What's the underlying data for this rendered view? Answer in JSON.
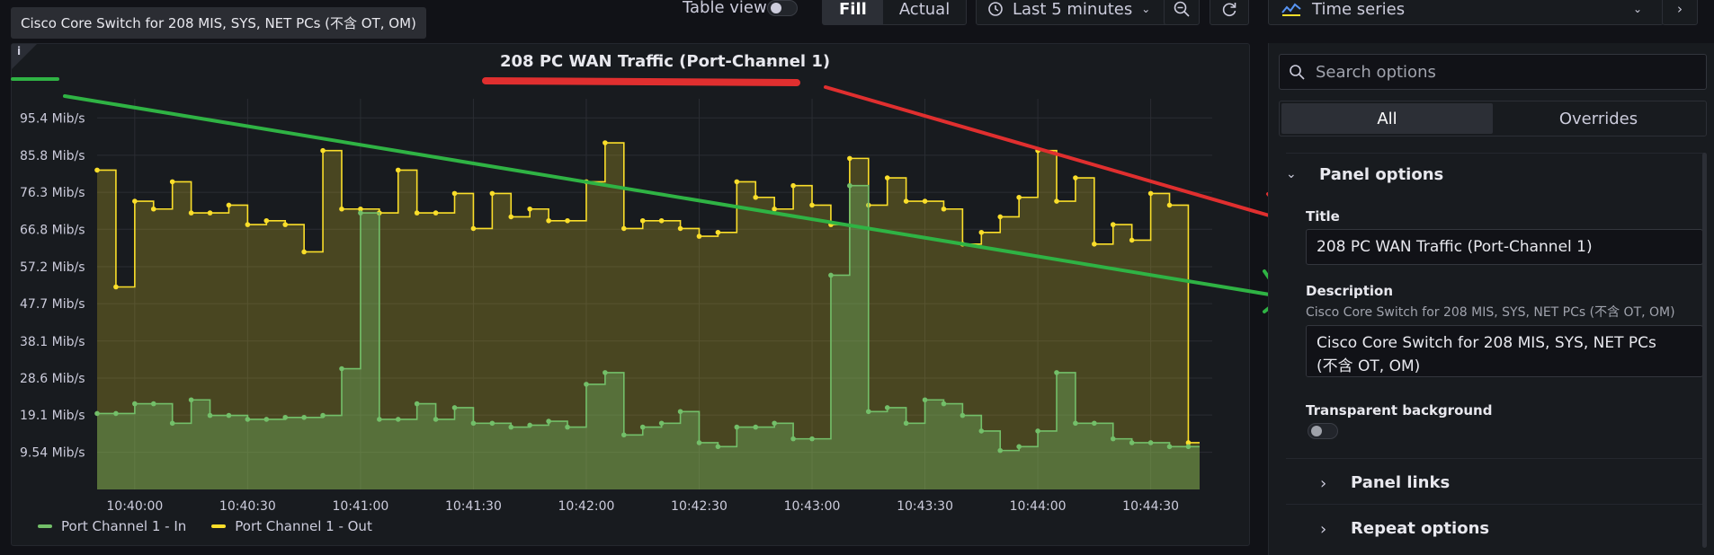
{
  "tooltip": "Cisco Core Switch for 208 MIS, SYS, NET PCs (不含 OT, OM)",
  "toolbar": {
    "table_view_label": "Table view",
    "fill_label": "Fill",
    "actual_label": "Actual",
    "time_range_label": "Last 5 minutes"
  },
  "panel": {
    "info_glyph": "i",
    "title": "208 PC WAN Traffic (Port-Channel 1)"
  },
  "options": {
    "visualization_label": "Time series",
    "search_placeholder": "Search options",
    "tab_all": "All",
    "tab_overrides": "Overrides",
    "panel_options_label": "Panel options",
    "title_label": "Title",
    "title_value": "208 PC WAN Traffic (Port-Channel 1)",
    "description_label": "Description",
    "description_help": "Cisco Core Switch for 208 MIS, SYS, NET PCs (不含 OT, OM)",
    "description_value": "Cisco Core Switch for 208 MIS, SYS, NET PCs\n(不含 OT, OM)",
    "transparent_label": "Transparent background",
    "panel_links_label": "Panel links",
    "repeat_options_label": "Repeat options"
  },
  "colors": {
    "in_series": "#73bf69",
    "out_series": "#fade2a",
    "annotation_red": "#e02f2f",
    "annotation_green": "#2fb344"
  },
  "chart_data": {
    "type": "area",
    "y_unit": "Mib/s",
    "y_ticks": [
      "95.4 Mib/s",
      "85.8 Mib/s",
      "76.3 Mib/s",
      "66.8 Mib/s",
      "57.2 Mib/s",
      "47.7 Mib/s",
      "38.1 Mib/s",
      "28.6 Mib/s",
      "19.1 Mib/s",
      "9.54 Mib/s"
    ],
    "y_tick_values": [
      95.4,
      85.8,
      76.3,
      66.8,
      57.2,
      47.7,
      38.1,
      28.6,
      19.1,
      9.54
    ],
    "ylim": [
      0,
      98
    ],
    "x_ticks": [
      "10:40:00",
      "10:40:30",
      "10:41:00",
      "10:41:30",
      "10:42:00",
      "10:42:30",
      "10:43:00",
      "10:43:30",
      "10:44:00",
      "10:44:30"
    ],
    "x_tick_seconds": [
      0,
      30,
      60,
      90,
      120,
      150,
      180,
      210,
      240,
      270
    ],
    "xlim": [
      -10,
      283
    ],
    "x": [
      -10,
      -5,
      0,
      5,
      10,
      15,
      20,
      25,
      30,
      35,
      40,
      45,
      50,
      55,
      60,
      65,
      70,
      75,
      80,
      85,
      90,
      95,
      100,
      105,
      110,
      115,
      120,
      125,
      130,
      135,
      140,
      145,
      150,
      155,
      160,
      165,
      170,
      175,
      180,
      185,
      190,
      195,
      200,
      205,
      210,
      215,
      220,
      225,
      230,
      235,
      240,
      245,
      250,
      255,
      260,
      265,
      270,
      275,
      280
    ],
    "grid": true,
    "legend_position": "bottom-left",
    "series": [
      {
        "name": "Port Channel 1 - In",
        "values": [
          19.5,
          19.5,
          22,
          22,
          17,
          23,
          19,
          19,
          18,
          18,
          18.5,
          18.5,
          19,
          31,
          71,
          18,
          18,
          22,
          18,
          21,
          17,
          17,
          16,
          16.5,
          17.5,
          16,
          27,
          30,
          14,
          16,
          17,
          20,
          12,
          11,
          16,
          16,
          17,
          13,
          13,
          55,
          78,
          20,
          21,
          17,
          23,
          22,
          19,
          15,
          10,
          11,
          15,
          30,
          17,
          17,
          13,
          12,
          12,
          11,
          11
        ]
      },
      {
        "name": "Port Channel 1 - Out",
        "values": [
          82,
          52,
          74,
          72,
          79,
          71,
          71,
          73,
          68,
          69,
          68,
          61,
          87,
          72,
          72,
          71,
          82,
          71,
          71,
          76,
          67,
          76,
          70,
          72,
          69,
          69,
          79,
          89,
          67,
          69,
          69,
          67,
          65,
          66,
          79,
          75,
          72,
          78,
          73,
          68,
          85,
          73,
          80,
          74,
          74,
          72,
          63,
          66,
          70,
          75,
          87,
          74,
          80,
          63,
          68,
          64,
          76,
          73,
          12
        ]
      }
    ]
  }
}
